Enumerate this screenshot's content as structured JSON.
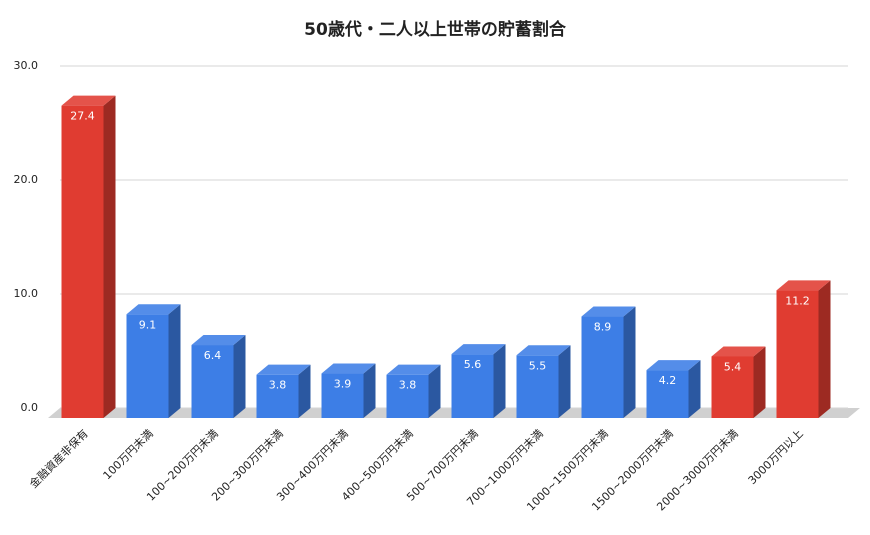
{
  "chart_data": {
    "type": "bar3d",
    "title": "50歳代・二人以上世帯の貯蓄割合",
    "categories": [
      "金融資産非保有",
      "100万円未満",
      "100~200万円未満",
      "200~300万円未満",
      "300~400万円未満",
      "400~500万円未満",
      "500~700万円未満",
      "700~1000万円未満",
      "1000~1500万円未満",
      "1500~2000万円未満",
      "2000~3000万円未満",
      "3000万円以上"
    ],
    "values": [
      27.4,
      9.1,
      6.4,
      3.8,
      3.9,
      3.8,
      5.6,
      5.5,
      8.9,
      4.2,
      5.4,
      11.2
    ],
    "colors": [
      "#e03c31",
      "#3d7ee6",
      "#3d7ee6",
      "#3d7ee6",
      "#3d7ee6",
      "#3d7ee6",
      "#3d7ee6",
      "#3d7ee6",
      "#3d7ee6",
      "#3d7ee6",
      "#e03c31",
      "#e03c31"
    ],
    "ylim": [
      0,
      30
    ],
    "yticks": [
      {
        "value": 0,
        "label": "0.0"
      },
      {
        "value": 10,
        "label": "10.0"
      },
      {
        "value": 20,
        "label": "20.0"
      },
      {
        "value": 30,
        "label": "30.0"
      }
    ],
    "grid": true
  }
}
